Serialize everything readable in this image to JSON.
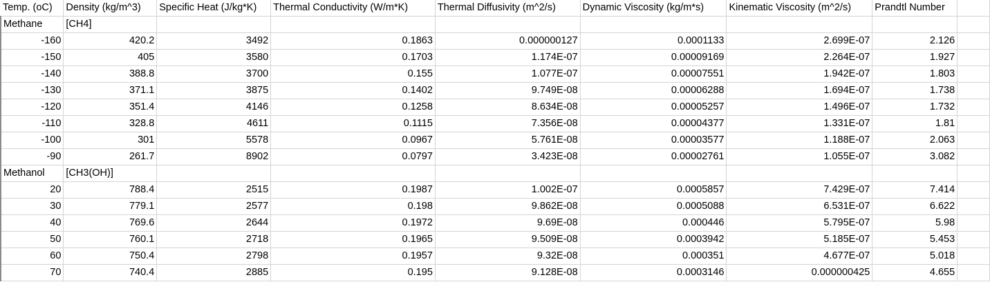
{
  "headers": [
    "Temp. (oC)",
    "Density (kg/m^3)",
    "Specific Heat (J/kg*K)",
    "Thermal Conductivity (W/m*K)",
    "Thermal Diffusivity (m^2/s)",
    "Dynamic Viscosity (kg/m*s)",
    "Kinematic Viscosity (m^2/s)",
    "Prandtl Number"
  ],
  "rows": [
    {
      "type": "label",
      "cells": [
        "Methane",
        "[CH4]",
        "",
        "",
        "",
        "",
        "",
        "",
        ""
      ]
    },
    {
      "type": "data",
      "cells": [
        "-160",
        "420.2",
        "3492",
        "0.1863",
        "0.000000127",
        "0.0001133",
        "2.699E-07",
        "2.126",
        ""
      ]
    },
    {
      "type": "data",
      "cells": [
        "-150",
        "405",
        "3580",
        "0.1703",
        "1.174E-07",
        "0.00009169",
        "2.264E-07",
        "1.927",
        ""
      ]
    },
    {
      "type": "data",
      "cells": [
        "-140",
        "388.8",
        "3700",
        "0.155",
        "1.077E-07",
        "0.00007551",
        "1.942E-07",
        "1.803",
        ""
      ]
    },
    {
      "type": "data",
      "cells": [
        "-130",
        "371.1",
        "3875",
        "0.1402",
        "9.749E-08",
        "0.00006288",
        "1.694E-07",
        "1.738",
        ""
      ]
    },
    {
      "type": "data",
      "cells": [
        "-120",
        "351.4",
        "4146",
        "0.1258",
        "8.634E-08",
        "0.00005257",
        "1.496E-07",
        "1.732",
        ""
      ]
    },
    {
      "type": "data",
      "cells": [
        "-110",
        "328.8",
        "4611",
        "0.1115",
        "7.356E-08",
        "0.00004377",
        "1.331E-07",
        "1.81",
        ""
      ]
    },
    {
      "type": "data",
      "cells": [
        "-100",
        "301",
        "5578",
        "0.0967",
        "5.761E-08",
        "0.00003577",
        "1.188E-07",
        "2.063",
        ""
      ]
    },
    {
      "type": "data",
      "cells": [
        "-90",
        "261.7",
        "8902",
        "0.0797",
        "3.423E-08",
        "0.00002761",
        "1.055E-07",
        "3.082",
        ""
      ]
    },
    {
      "type": "label",
      "cells": [
        "Methanol",
        "[CH3(OH)]",
        "",
        "",
        "",
        "",
        "",
        "",
        ""
      ]
    },
    {
      "type": "data",
      "cells": [
        "20",
        "788.4",
        "2515",
        "0.1987",
        "1.002E-07",
        "0.0005857",
        "7.429E-07",
        "7.414",
        ""
      ]
    },
    {
      "type": "data",
      "cells": [
        "30",
        "779.1",
        "2577",
        "0.198",
        "9.862E-08",
        "0.0005088",
        "6.531E-07",
        "6.622",
        ""
      ]
    },
    {
      "type": "data",
      "cells": [
        "40",
        "769.6",
        "2644",
        "0.1972",
        "9.69E-08",
        "0.000446",
        "5.795E-07",
        "5.98",
        ""
      ]
    },
    {
      "type": "data",
      "cells": [
        "50",
        "760.1",
        "2718",
        "0.1965",
        "9.509E-08",
        "0.0003942",
        "5.185E-07",
        "5.453",
        ""
      ]
    },
    {
      "type": "data",
      "cells": [
        "60",
        "750.4",
        "2798",
        "0.1957",
        "9.32E-08",
        "0.000351",
        "4.677E-07",
        "5.018",
        ""
      ]
    },
    {
      "type": "data",
      "cells": [
        "70",
        "740.4",
        "2885",
        "0.195",
        "9.128E-08",
        "0.0003146",
        "0.000000425",
        "4.655",
        ""
      ]
    }
  ]
}
